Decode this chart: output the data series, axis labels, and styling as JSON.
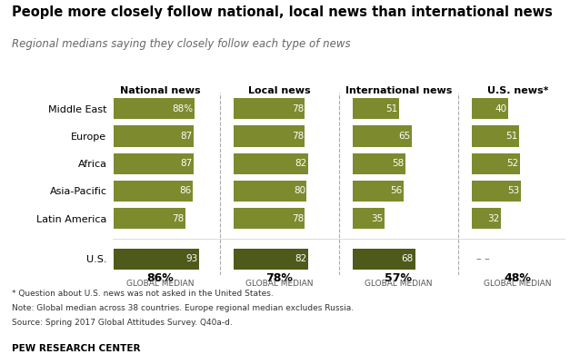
{
  "title": "People more closely follow national, local news than international news",
  "subtitle": "Regional medians saying they closely follow each type of news",
  "categories": [
    "Middle East",
    "Europe",
    "Africa",
    "Asia-Pacific",
    "Latin America",
    "U.S."
  ],
  "group_headers": [
    "National news",
    "Local news",
    "International news",
    "U.S. news*"
  ],
  "data": {
    "National news": [
      88,
      87,
      87,
      86,
      78,
      93
    ],
    "Local news": [
      78,
      78,
      82,
      80,
      78,
      82
    ],
    "International news": [
      51,
      65,
      58,
      56,
      35,
      68
    ],
    "U.S. news*": [
      40,
      51,
      52,
      53,
      32,
      null
    ]
  },
  "global_medians": {
    "National news": "86%",
    "Local news": "78%",
    "International news": "57%",
    "U.S. news*": "48%"
  },
  "bar_color_light": "#7d8b2e",
  "bar_color_dark": "#4e5a1a",
  "footnote_line1": "* Question about U.S. news was not asked in the United States.",
  "footnote_line2": "Note: Global median across 38 countries. Europe regional median excludes Russia.",
  "footnote_line3": "Source: Spring 2017 Global Attitudes Survey. Q40a-d.",
  "source": "PEW RESEARCH CENTER"
}
